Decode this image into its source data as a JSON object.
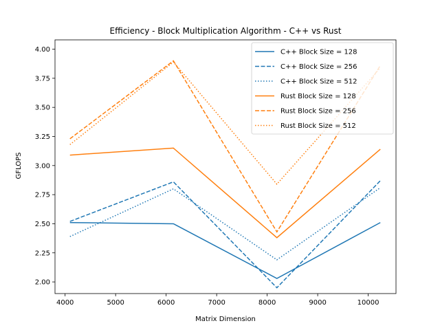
{
  "chart_data": {
    "type": "line",
    "title": "Efficiency - Block Multiplication Algorithm - C++ vs Rust",
    "xlabel": "Matrix Dimension",
    "ylabel": "GFLOPS",
    "xlim": [
      3800,
      10550
    ],
    "ylim": [
      1.9,
      4.08
    ],
    "x": [
      4096,
      6144,
      8192,
      10240
    ],
    "xticks": [
      4000,
      5000,
      6000,
      7000,
      8000,
      9000,
      10000
    ],
    "yticks": [
      2.0,
      2.25,
      2.5,
      2.75,
      3.0,
      3.25,
      3.5,
      3.75,
      4.0
    ],
    "grid": false,
    "legend_position": "top-right",
    "colors": {
      "cpp": "#1f77b4",
      "rust": "#ff7f0e"
    },
    "series": [
      {
        "name": "C++ Block Size = 128",
        "values": [
          2.51,
          2.5,
          2.03,
          2.51
        ],
        "color": "#1f77b4",
        "dash": "solid"
      },
      {
        "name": "C++ Block Size = 256",
        "values": [
          2.52,
          2.86,
          1.95,
          2.87
        ],
        "color": "#1f77b4",
        "dash": "dashed"
      },
      {
        "name": "C++ Block Size = 512",
        "values": [
          2.39,
          2.8,
          2.19,
          2.81
        ],
        "color": "#1f77b4",
        "dash": "dotted"
      },
      {
        "name": "Rust Block Size = 128",
        "values": [
          3.09,
          3.15,
          2.38,
          3.14
        ],
        "color": "#ff7f0e",
        "dash": "solid"
      },
      {
        "name": "Rust Block Size = 256",
        "values": [
          3.23,
          3.9,
          2.43,
          3.86
        ],
        "color": "#ff7f0e",
        "dash": "dashed"
      },
      {
        "name": "Rust Block Size = 512",
        "values": [
          3.18,
          3.89,
          2.84,
          3.84
        ],
        "color": "#ff7f0e",
        "dash": "dotted"
      }
    ]
  }
}
